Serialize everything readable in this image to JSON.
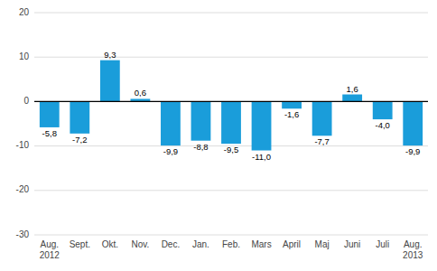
{
  "chart_data": {
    "type": "bar",
    "categories": [
      "Aug.\n2012",
      "Sept.",
      "Okt.",
      "Nov.",
      "Dec.",
      "Jan.",
      "Feb.",
      "Mars",
      "April",
      "Maj",
      "Juni",
      "Juli",
      "Aug.\n2013"
    ],
    "values": [
      -5.8,
      -7.2,
      9.3,
      0.6,
      -9.9,
      -8.8,
      -9.5,
      -11.0,
      -1.6,
      -7.7,
      1.6,
      -4.0,
      -9.9
    ],
    "value_labels": [
      "-5,8",
      "-7,2",
      "9,3",
      "0,6",
      "-9,9",
      "-8,8",
      "-9,5",
      "-11,0",
      "-1,6",
      "-7,7",
      "1,6",
      "-4,0",
      "-9,9"
    ],
    "data_labels": true,
    "color": "#1a9dda",
    "ylim": [
      -30,
      20
    ],
    "yticks": [
      -30,
      -20,
      -10,
      0,
      10,
      20
    ],
    "grid": true
  }
}
